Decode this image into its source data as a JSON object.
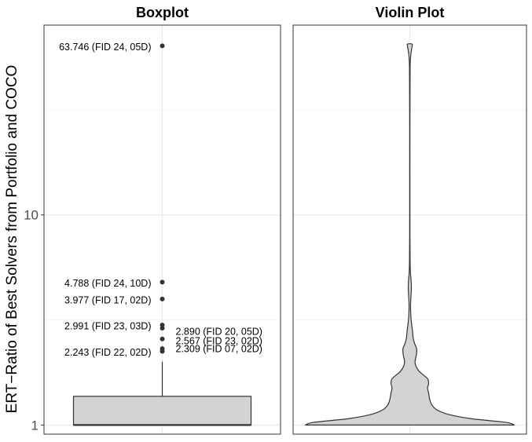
{
  "chart_data": {
    "type": "box_violin",
    "ylabel": "ERT−Ratio of Best Solvers from Portfolio and COCO",
    "yscale": "log10",
    "ylim": [
      0.905,
      80
    ],
    "yticks": [
      1,
      10
    ],
    "ytick_labels": [
      "1",
      "10"
    ],
    "grid": true,
    "fill_color": "#d3d3d3",
    "panels": [
      {
        "title": "Boxplot",
        "box": {
          "q1": 1.0,
          "median": 1.0,
          "q3": 1.37,
          "whisker_low": 1.0,
          "whisker_high": 2.0
        },
        "outliers": [
          63.746,
          4.788,
          3.977,
          2.991,
          2.89,
          2.567,
          2.309,
          2.243
        ],
        "annotations": [
          {
            "value": 63.746,
            "label": "63.746 (FID 24, 05D)",
            "side": "left"
          },
          {
            "value": 4.788,
            "label": "4.788 (FID 24, 10D)",
            "side": "left"
          },
          {
            "value": 3.977,
            "label": "3.977 (FID 17, 02D)",
            "side": "left"
          },
          {
            "value": 2.991,
            "label": "2.991 (FID 23, 03D)",
            "side": "left"
          },
          {
            "value": 2.243,
            "label": "2.243 (FID 22, 02D)",
            "side": "left"
          },
          {
            "value": 2.89,
            "label": "2.890 (FID 20, 05D)",
            "side": "right"
          },
          {
            "value": 2.567,
            "label": "2.567 (FID 23, 02D)",
            "side": "right"
          },
          {
            "value": 2.309,
            "label": "2.309 (FID 07, 02D)",
            "side": "right"
          }
        ]
      },
      {
        "title": "Violin Plot",
        "violin_density": [
          {
            "y": 1.0,
            "w": 1.0
          },
          {
            "y": 1.03,
            "w": 0.92
          },
          {
            "y": 1.07,
            "w": 0.6
          },
          {
            "y": 1.12,
            "w": 0.38
          },
          {
            "y": 1.18,
            "w": 0.26
          },
          {
            "y": 1.25,
            "w": 0.21
          },
          {
            "y": 1.33,
            "w": 0.19
          },
          {
            "y": 1.42,
            "w": 0.18
          },
          {
            "y": 1.5,
            "w": 0.17
          },
          {
            "y": 1.58,
            "w": 0.18
          },
          {
            "y": 1.66,
            "w": 0.17
          },
          {
            "y": 1.73,
            "w": 0.13
          },
          {
            "y": 1.8,
            "w": 0.09
          },
          {
            "y": 1.9,
            "w": 0.06
          },
          {
            "y": 2.0,
            "w": 0.05
          },
          {
            "y": 2.15,
            "w": 0.062
          },
          {
            "y": 2.3,
            "w": 0.066
          },
          {
            "y": 2.45,
            "w": 0.045
          },
          {
            "y": 2.6,
            "w": 0.032
          },
          {
            "y": 2.8,
            "w": 0.026
          },
          {
            "y": 3.0,
            "w": 0.018
          },
          {
            "y": 3.3,
            "w": 0.01
          },
          {
            "y": 3.7,
            "w": 0.007
          },
          {
            "y": 4.1,
            "w": 0.011
          },
          {
            "y": 4.5,
            "w": 0.015
          },
          {
            "y": 4.9,
            "w": 0.012
          },
          {
            "y": 5.3,
            "w": 0.006
          },
          {
            "y": 6.0,
            "w": 0.003
          },
          {
            "y": 8.0,
            "w": 0.0015
          },
          {
            "y": 15.0,
            "w": 0.0012
          },
          {
            "y": 30.0,
            "w": 0.0015
          },
          {
            "y": 50.0,
            "w": 0.003
          },
          {
            "y": 58.0,
            "w": 0.01
          },
          {
            "y": 63.0,
            "w": 0.021
          },
          {
            "y": 65.0,
            "w": 0.022
          }
        ]
      }
    ]
  }
}
